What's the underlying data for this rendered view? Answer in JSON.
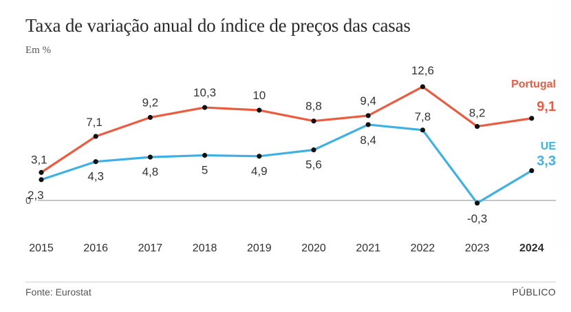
{
  "header": {
    "title": "Taxa de variação anual do índice de preços das casas",
    "unit": "Em %"
  },
  "footer": {
    "source": "Fonte: Eurostat",
    "brand": "PÚBLICO"
  },
  "colors": {
    "portugal": "#ec5b40",
    "ue": "#3eb0e4",
    "text": "#333333",
    "axis": "#888888"
  },
  "chart_data": {
    "type": "line",
    "title": "Taxa de variação anual do índice de preços das casas",
    "ylabel": "Em %",
    "x": [
      "2015",
      "2016",
      "2017",
      "2018",
      "2019",
      "2020",
      "2021",
      "2022",
      "2023",
      "2024"
    ],
    "x_bold": "2024",
    "series": [
      {
        "name": "Portugal",
        "color": "#ec5b40",
        "values": [
          3.1,
          7.1,
          9.2,
          10.3,
          10,
          8.8,
          9.4,
          12.6,
          8.2,
          9.1
        ],
        "labels": [
          "3,1",
          "7,1",
          "9,2",
          "10,3",
          "10",
          "8,8",
          "9,4",
          "12,6",
          "8,2",
          "9,1"
        ]
      },
      {
        "name": "UE",
        "color": "#3eb0e4",
        "values": [
          2.3,
          4.3,
          4.8,
          5,
          4.9,
          5.6,
          8.4,
          7.8,
          -0.3,
          3.3
        ],
        "labels": [
          "2,3",
          "4,3",
          "4,8",
          "5",
          "4,9",
          "5,6",
          "8,4",
          "7,8",
          "-0,3",
          "3,3"
        ]
      }
    ],
    "zero_label": "0",
    "ylim": [
      -0.3,
      12.6
    ],
    "grid": false,
    "legend": "right, at line ends"
  }
}
